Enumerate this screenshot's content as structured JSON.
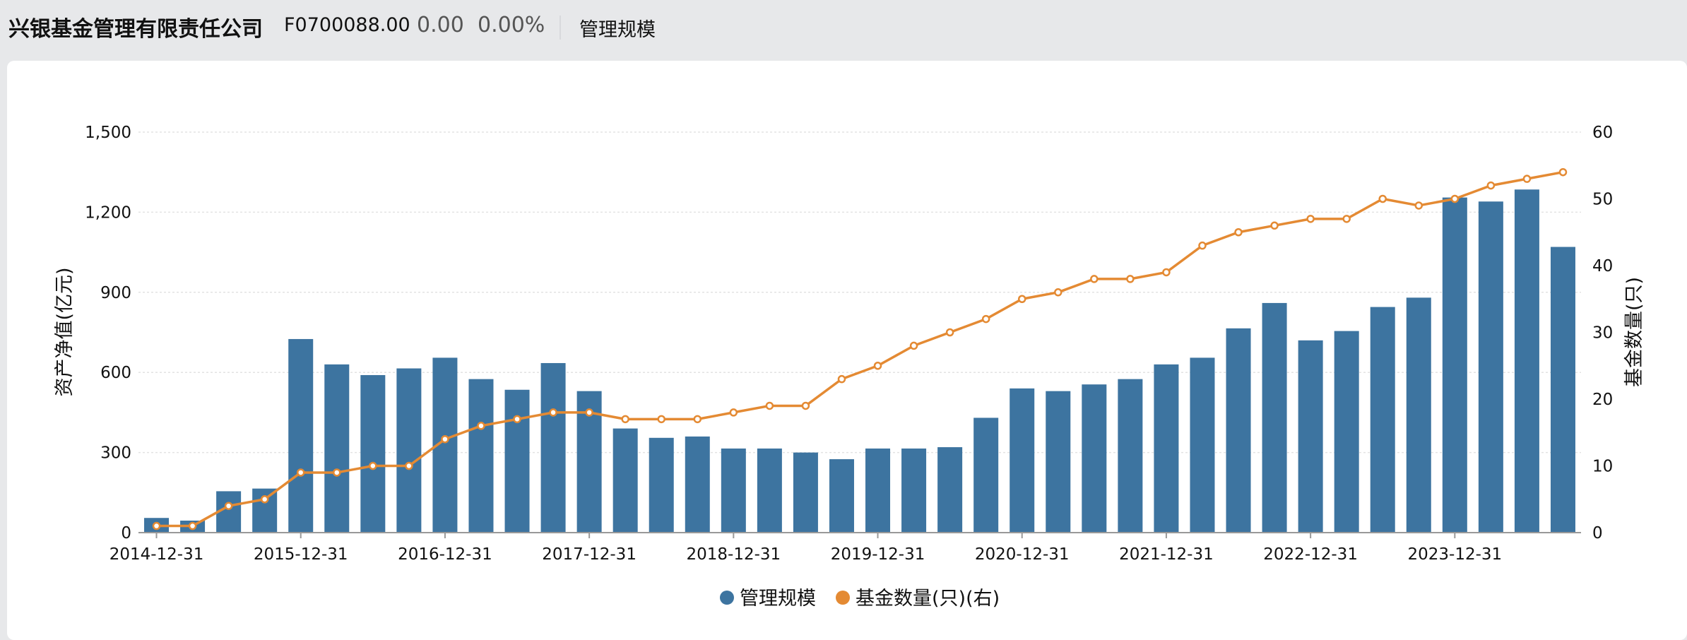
{
  "header": {
    "company_name": "兴银基金管理有限责任公司",
    "code": "F0700088.00",
    "change": "0.00",
    "change_pct": "0.00%",
    "tab_label": "管理规模"
  },
  "colors": {
    "bar": "#3d74a0",
    "line": "#e48a33",
    "grid": "#e3e3e3",
    "axis": "#999999"
  },
  "chart_data": {
    "type": "bar+line",
    "ylabel_left": "资产净值(亿元)",
    "ylabel_right": "基金数量(只)",
    "ylim_left": [
      0,
      1500
    ],
    "ylim_right": [
      0,
      60
    ],
    "yticks_left": [
      "0",
      "300",
      "600",
      "900",
      "1,200",
      "1,500"
    ],
    "yticks_right": [
      "0",
      "10",
      "20",
      "30",
      "40",
      "50",
      "60"
    ],
    "xtick_labels": [
      "2014-12-31",
      "2015-12-31",
      "2016-12-31",
      "2017-12-31",
      "2018-12-31",
      "2019-12-31",
      "2020-12-31",
      "2021-12-31",
      "2022-12-31",
      "2023-12-31"
    ],
    "xtick_indices": [
      0,
      4,
      8,
      12,
      16,
      20,
      24,
      28,
      32,
      36
    ],
    "series": [
      {
        "name": "管理规模",
        "type": "bar",
        "axis": "left",
        "values": [
          55,
          45,
          155,
          165,
          725,
          630,
          590,
          615,
          655,
          575,
          535,
          635,
          530,
          390,
          355,
          360,
          315,
          315,
          300,
          275,
          315,
          315,
          320,
          430,
          540,
          530,
          555,
          575,
          630,
          655,
          765,
          860,
          720,
          755,
          845,
          880,
          1255,
          1240,
          1285,
          1070
        ]
      },
      {
        "name": "基金数量(只)(右)",
        "type": "line",
        "axis": "right",
        "values": [
          1,
          1,
          4,
          5,
          9,
          9,
          10,
          10,
          14,
          16,
          17,
          18,
          18,
          17,
          17,
          17,
          18,
          19,
          19,
          23,
          25,
          28,
          30,
          32,
          35,
          36,
          38,
          38,
          39,
          43,
          45,
          46,
          47,
          47,
          50,
          49,
          50,
          52,
          53,
          54
        ]
      }
    ],
    "legend": [
      "管理规模",
      "基金数量(只)(右)"
    ]
  }
}
